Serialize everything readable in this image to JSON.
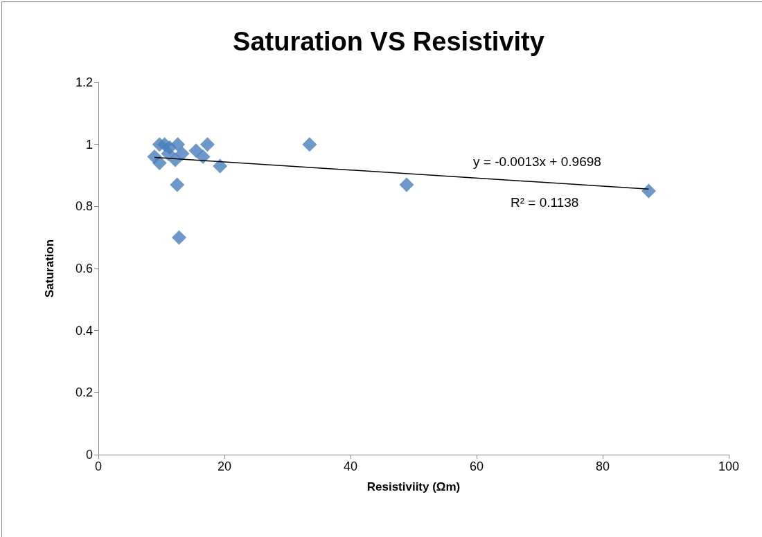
{
  "chart_data": {
    "type": "scatter",
    "title": "Saturation VS Resistivity",
    "xlabel": "Resistiviity (Ωm)",
    "ylabel": "Saturation",
    "xlim": [
      0,
      100
    ],
    "xticks": [
      0,
      20,
      40,
      60,
      80,
      100
    ],
    "ylim": [
      0,
      1.2
    ],
    "yticks": [
      0,
      0.2,
      0.4,
      0.6,
      0.8,
      1,
      1.2
    ],
    "grid": false,
    "marker": "diamond",
    "series": [
      {
        "color": "#4a7ebb",
        "x": [
          9.7,
          10.5,
          8.9,
          9.7,
          11.1,
          11.3,
          12.6,
          12.2,
          13.3,
          15.5,
          17.3,
          16.6,
          19.3,
          12.5,
          12.8,
          33.5,
          48.9,
          87.3
        ],
        "values": [
          1.0,
          1.0,
          0.96,
          0.94,
          0.97,
          0.99,
          1.0,
          0.95,
          0.97,
          0.98,
          1.0,
          0.96,
          0.93,
          0.87,
          0.7,
          1.0,
          0.87,
          0.85
        ]
      },
      {
        "type": "line",
        "color": "#000000",
        "marker": "none",
        "x": [
          8.9,
          87.3
        ],
        "values": [
          0.958,
          0.856
        ]
      }
    ],
    "annotations": [
      "y = -0.0013x + 0.9698",
      "R² = 0.1138"
    ]
  }
}
